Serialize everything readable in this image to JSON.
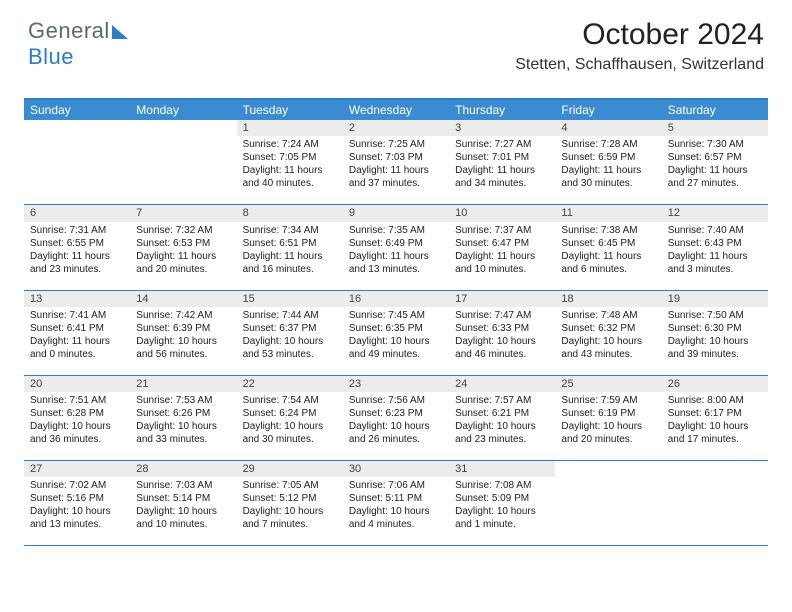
{
  "logo": {
    "word1": "General",
    "word2": "Blue"
  },
  "header": {
    "title": "October 2024",
    "location": "Stetten, Schaffhausen, Switzerland"
  },
  "styling": {
    "accent": "#2f7cc0",
    "header_bg": "#3b8bd0",
    "daynum_bg": "#ececec",
    "page_bg": "#ffffff",
    "title_fontsize": 30,
    "subtitle_fontsize": 16,
    "dayhead_fontsize": 12,
    "cell_fontsize": 10,
    "columns": 7,
    "rows": 5
  },
  "dayNames": [
    "Sunday",
    "Monday",
    "Tuesday",
    "Wednesday",
    "Thursday",
    "Friday",
    "Saturday"
  ],
  "weeks": [
    [
      {
        "n": "",
        "empty": true
      },
      {
        "n": "",
        "empty": true
      },
      {
        "n": "1",
        "sr": "Sunrise: 7:24 AM",
        "ss": "Sunset: 7:05 PM",
        "dl": "Daylight: 11 hours and 40 minutes."
      },
      {
        "n": "2",
        "sr": "Sunrise: 7:25 AM",
        "ss": "Sunset: 7:03 PM",
        "dl": "Daylight: 11 hours and 37 minutes."
      },
      {
        "n": "3",
        "sr": "Sunrise: 7:27 AM",
        "ss": "Sunset: 7:01 PM",
        "dl": "Daylight: 11 hours and 34 minutes."
      },
      {
        "n": "4",
        "sr": "Sunrise: 7:28 AM",
        "ss": "Sunset: 6:59 PM",
        "dl": "Daylight: 11 hours and 30 minutes."
      },
      {
        "n": "5",
        "sr": "Sunrise: 7:30 AM",
        "ss": "Sunset: 6:57 PM",
        "dl": "Daylight: 11 hours and 27 minutes."
      }
    ],
    [
      {
        "n": "6",
        "sr": "Sunrise: 7:31 AM",
        "ss": "Sunset: 6:55 PM",
        "dl": "Daylight: 11 hours and 23 minutes."
      },
      {
        "n": "7",
        "sr": "Sunrise: 7:32 AM",
        "ss": "Sunset: 6:53 PM",
        "dl": "Daylight: 11 hours and 20 minutes."
      },
      {
        "n": "8",
        "sr": "Sunrise: 7:34 AM",
        "ss": "Sunset: 6:51 PM",
        "dl": "Daylight: 11 hours and 16 minutes."
      },
      {
        "n": "9",
        "sr": "Sunrise: 7:35 AM",
        "ss": "Sunset: 6:49 PM",
        "dl": "Daylight: 11 hours and 13 minutes."
      },
      {
        "n": "10",
        "sr": "Sunrise: 7:37 AM",
        "ss": "Sunset: 6:47 PM",
        "dl": "Daylight: 11 hours and 10 minutes."
      },
      {
        "n": "11",
        "sr": "Sunrise: 7:38 AM",
        "ss": "Sunset: 6:45 PM",
        "dl": "Daylight: 11 hours and 6 minutes."
      },
      {
        "n": "12",
        "sr": "Sunrise: 7:40 AM",
        "ss": "Sunset: 6:43 PM",
        "dl": "Daylight: 11 hours and 3 minutes."
      }
    ],
    [
      {
        "n": "13",
        "sr": "Sunrise: 7:41 AM",
        "ss": "Sunset: 6:41 PM",
        "dl": "Daylight: 11 hours and 0 minutes."
      },
      {
        "n": "14",
        "sr": "Sunrise: 7:42 AM",
        "ss": "Sunset: 6:39 PM",
        "dl": "Daylight: 10 hours and 56 minutes."
      },
      {
        "n": "15",
        "sr": "Sunrise: 7:44 AM",
        "ss": "Sunset: 6:37 PM",
        "dl": "Daylight: 10 hours and 53 minutes."
      },
      {
        "n": "16",
        "sr": "Sunrise: 7:45 AM",
        "ss": "Sunset: 6:35 PM",
        "dl": "Daylight: 10 hours and 49 minutes."
      },
      {
        "n": "17",
        "sr": "Sunrise: 7:47 AM",
        "ss": "Sunset: 6:33 PM",
        "dl": "Daylight: 10 hours and 46 minutes."
      },
      {
        "n": "18",
        "sr": "Sunrise: 7:48 AM",
        "ss": "Sunset: 6:32 PM",
        "dl": "Daylight: 10 hours and 43 minutes."
      },
      {
        "n": "19",
        "sr": "Sunrise: 7:50 AM",
        "ss": "Sunset: 6:30 PM",
        "dl": "Daylight: 10 hours and 39 minutes."
      }
    ],
    [
      {
        "n": "20",
        "sr": "Sunrise: 7:51 AM",
        "ss": "Sunset: 6:28 PM",
        "dl": "Daylight: 10 hours and 36 minutes."
      },
      {
        "n": "21",
        "sr": "Sunrise: 7:53 AM",
        "ss": "Sunset: 6:26 PM",
        "dl": "Daylight: 10 hours and 33 minutes."
      },
      {
        "n": "22",
        "sr": "Sunrise: 7:54 AM",
        "ss": "Sunset: 6:24 PM",
        "dl": "Daylight: 10 hours and 30 minutes."
      },
      {
        "n": "23",
        "sr": "Sunrise: 7:56 AM",
        "ss": "Sunset: 6:23 PM",
        "dl": "Daylight: 10 hours and 26 minutes."
      },
      {
        "n": "24",
        "sr": "Sunrise: 7:57 AM",
        "ss": "Sunset: 6:21 PM",
        "dl": "Daylight: 10 hours and 23 minutes."
      },
      {
        "n": "25",
        "sr": "Sunrise: 7:59 AM",
        "ss": "Sunset: 6:19 PM",
        "dl": "Daylight: 10 hours and 20 minutes."
      },
      {
        "n": "26",
        "sr": "Sunrise: 8:00 AM",
        "ss": "Sunset: 6:17 PM",
        "dl": "Daylight: 10 hours and 17 minutes."
      }
    ],
    [
      {
        "n": "27",
        "sr": "Sunrise: 7:02 AM",
        "ss": "Sunset: 5:16 PM",
        "dl": "Daylight: 10 hours and 13 minutes."
      },
      {
        "n": "28",
        "sr": "Sunrise: 7:03 AM",
        "ss": "Sunset: 5:14 PM",
        "dl": "Daylight: 10 hours and 10 minutes."
      },
      {
        "n": "29",
        "sr": "Sunrise: 7:05 AM",
        "ss": "Sunset: 5:12 PM",
        "dl": "Daylight: 10 hours and 7 minutes."
      },
      {
        "n": "30",
        "sr": "Sunrise: 7:06 AM",
        "ss": "Sunset: 5:11 PM",
        "dl": "Daylight: 10 hours and 4 minutes."
      },
      {
        "n": "31",
        "sr": "Sunrise: 7:08 AM",
        "ss": "Sunset: 5:09 PM",
        "dl": "Daylight: 10 hours and 1 minute."
      },
      {
        "n": "",
        "empty": true
      },
      {
        "n": "",
        "empty": true
      }
    ]
  ]
}
